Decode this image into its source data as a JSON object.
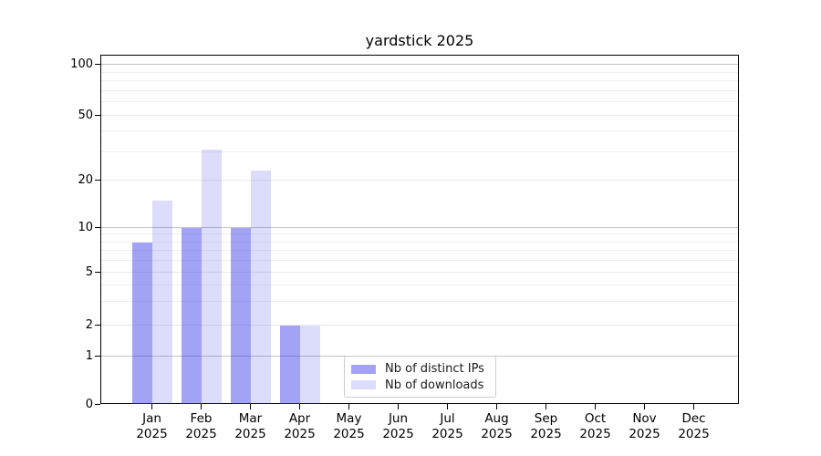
{
  "title": "yardstick 2025",
  "chart_data": {
    "type": "bar",
    "title": "yardstick 2025",
    "categories": [
      "Jan 2025",
      "Feb 2025",
      "Mar 2025",
      "Apr 2025",
      "May 2025",
      "Jun 2025",
      "Jul 2025",
      "Aug 2025",
      "Sep 2025",
      "Oct 2025",
      "Nov 2025",
      "Dec 2025"
    ],
    "series": [
      {
        "name": "Nb of distinct IPs",
        "color": "#a9a9f6",
        "base_color": "#3C3CEB",
        "alpha": 0.47,
        "values": [
          8,
          10,
          10,
          2,
          0,
          0,
          0,
          0,
          0,
          0,
          0,
          0
        ]
      },
      {
        "name": "Nb of downloads",
        "color": "#dbdbf9",
        "base_color": "#3C3CEB",
        "alpha": 0.18,
        "values": [
          15,
          31,
          23,
          2,
          0,
          0,
          0,
          0,
          0,
          0,
          0,
          0
        ]
      }
    ],
    "xlabel": "",
    "ylabel": "",
    "yscale": "symlog",
    "ylim": [
      0,
      115
    ],
    "yticks": [
      0,
      1,
      2,
      5,
      10,
      20,
      50,
      100
    ],
    "yticks_minor": [
      3,
      4,
      6,
      7,
      8,
      9,
      30,
      40,
      60,
      70,
      80,
      90
    ],
    "grid": true,
    "legend_position": "inside-bottom-center",
    "style": {
      "spine_color": "#000000",
      "decade_grid_color": "#c4c4c4",
      "major_grid_color": "#e9e9e9",
      "minor_grid_color": "#f0f0f0",
      "background": "#ffffff"
    }
  }
}
